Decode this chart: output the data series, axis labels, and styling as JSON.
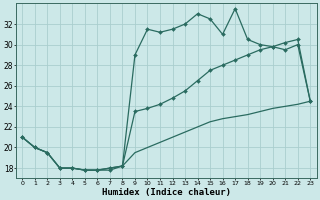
{
  "xlabel": "Humidex (Indice chaleur)",
  "bg_color": "#cce8e8",
  "line_color": "#2a6b60",
  "grid_color": "#aacece",
  "xlim": [
    -0.5,
    23.5
  ],
  "ylim": [
    17.0,
    34.0
  ],
  "yticks": [
    18,
    20,
    22,
    24,
    26,
    28,
    30,
    32
  ],
  "xticks": [
    0,
    1,
    2,
    3,
    4,
    5,
    6,
    7,
    8,
    9,
    10,
    11,
    12,
    13,
    14,
    15,
    16,
    17,
    18,
    19,
    20,
    21,
    22,
    23
  ],
  "line1_x": [
    0,
    1,
    2,
    3,
    4,
    5,
    6,
    7,
    8,
    9,
    10,
    11,
    12,
    13,
    14,
    15,
    16,
    17,
    18,
    19,
    20,
    21,
    22,
    23
  ],
  "line1_y": [
    21.0,
    20.0,
    19.5,
    18.0,
    18.0,
    17.8,
    17.8,
    17.8,
    18.2,
    29.0,
    31.5,
    31.2,
    31.5,
    32.0,
    33.0,
    32.5,
    31.0,
    33.5,
    30.5,
    30.0,
    29.8,
    29.5,
    30.0,
    24.5
  ],
  "line2_x": [
    0,
    1,
    2,
    3,
    4,
    5,
    6,
    7,
    8,
    9,
    10,
    11,
    12,
    13,
    14,
    15,
    16,
    17,
    18,
    19,
    20,
    21,
    22,
    23
  ],
  "line2_y": [
    21.0,
    20.0,
    19.5,
    18.0,
    18.0,
    17.8,
    17.8,
    18.0,
    18.2,
    23.5,
    23.8,
    24.2,
    24.8,
    25.5,
    26.5,
    27.5,
    28.0,
    28.5,
    29.0,
    29.5,
    29.8,
    30.2,
    30.5,
    24.5
  ],
  "line3_x": [
    0,
    1,
    2,
    3,
    4,
    5,
    6,
    7,
    8,
    9,
    10,
    11,
    12,
    13,
    14,
    15,
    16,
    17,
    18,
    19,
    20,
    21,
    22,
    23
  ],
  "line3_y": [
    21.0,
    20.0,
    19.5,
    18.0,
    18.0,
    17.8,
    17.8,
    18.0,
    18.2,
    19.5,
    20.0,
    20.5,
    21.0,
    21.5,
    22.0,
    22.5,
    22.8,
    23.0,
    23.2,
    23.5,
    23.8,
    24.0,
    24.2,
    24.5
  ]
}
